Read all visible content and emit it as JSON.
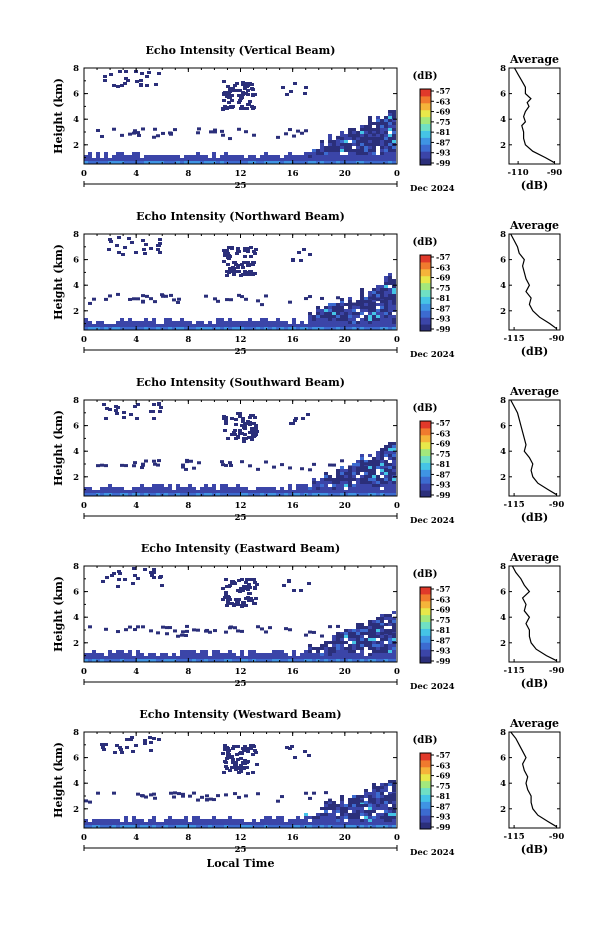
{
  "chart_data": [
    {
      "type": "heatmap",
      "title": "Echo Intensity (Vertical Beam)",
      "ylabel": "Height (km)",
      "xticks": [
        "0",
        "4",
        "8",
        "12",
        "16",
        "20",
        "0"
      ],
      "date_label": "25",
      "month_year": "Dec 2024",
      "ylim": [
        0.5,
        8
      ],
      "yticks": [
        "2",
        "4",
        "6",
        "8"
      ],
      "colorbar": {
        "unit": "(dB)",
        "ticks": [
          "-57",
          "-63",
          "-69",
          "-75",
          "-81",
          "-87",
          "-93",
          "-99"
        ]
      },
      "average": {
        "title": "Average",
        "xlabel": "(dB)",
        "xticks": [
          "-110",
          "-90"
        ],
        "xlim": [
          -115,
          -87
        ],
        "height": [
          0.6,
          1.0,
          1.5,
          2.0,
          2.5,
          3.0,
          3.5,
          3.8,
          4.2,
          4.6,
          5.0,
          5.3,
          5.6,
          6.0,
          6.5,
          7.0,
          7.5,
          8.0
        ],
        "db": [
          -90,
          -95,
          -102,
          -106,
          -107,
          -107,
          -108,
          -106,
          -107,
          -106,
          -104,
          -105,
          -103,
          -106,
          -106,
          -108,
          -110,
          -112
        ]
      }
    },
    {
      "type": "heatmap",
      "title": "Echo Intensity (Northward Beam)",
      "ylabel": "Height (km)",
      "xticks": [
        "0",
        "4",
        "8",
        "12",
        "16",
        "20",
        "0"
      ],
      "date_label": "25",
      "month_year": "Dec 2024",
      "ylim": [
        0.5,
        8
      ],
      "yticks": [
        "2",
        "4",
        "6",
        "8"
      ],
      "colorbar": {
        "unit": "(dB)",
        "ticks": [
          "-57",
          "-63",
          "-69",
          "-75",
          "-81",
          "-87",
          "-93",
          "-99"
        ]
      },
      "average": {
        "title": "Average",
        "xlabel": "(dB)",
        "xticks": [
          "-115",
          "-90"
        ],
        "xlim": [
          -118,
          -88
        ],
        "height": [
          0.6,
          1.0,
          1.5,
          2.0,
          2.5,
          3.0,
          3.5,
          4.0,
          4.5,
          5.0,
          5.5,
          6.0,
          6.5,
          7.0,
          7.5,
          8.0
        ],
        "db": [
          -90,
          -94,
          -100,
          -104,
          -106,
          -105,
          -108,
          -106,
          -108,
          -109,
          -110,
          -109,
          -112,
          -113,
          -115,
          -117
        ]
      }
    },
    {
      "type": "heatmap",
      "title": "Echo Intensity (Southward Beam)",
      "ylabel": "Height (km)",
      "xticks": [
        "0",
        "4",
        "8",
        "12",
        "16",
        "20",
        "0"
      ],
      "date_label": "25",
      "month_year": "Dec 2024",
      "ylim": [
        0.5,
        8
      ],
      "yticks": [
        "2",
        "4",
        "6",
        "8"
      ],
      "colorbar": {
        "unit": "(dB)",
        "ticks": [
          "-57",
          "-63",
          "-69",
          "-75",
          "-81",
          "-87",
          "-93",
          "-99"
        ]
      },
      "average": {
        "title": "Average",
        "xlabel": "(dB)",
        "xticks": [
          "-115",
          "-90"
        ],
        "xlim": [
          -118,
          -88
        ],
        "height": [
          0.6,
          1.0,
          1.5,
          2.0,
          2.5,
          3.0,
          3.5,
          4.0,
          4.5,
          5.0,
          5.5,
          6.0,
          6.5,
          7.0,
          7.5,
          8.0
        ],
        "db": [
          -90,
          -95,
          -101,
          -104,
          -105,
          -104,
          -106,
          -109,
          -108,
          -109,
          -110,
          -111,
          -112,
          -113,
          -115,
          -117
        ]
      }
    },
    {
      "type": "heatmap",
      "title": "Echo Intensity (Eastward Beam)",
      "ylabel": "Height (km)",
      "xticks": [
        "0",
        "4",
        "8",
        "12",
        "16",
        "20",
        "0"
      ],
      "date_label": "25",
      "month_year": "Dec 2024",
      "ylim": [
        0.5,
        8
      ],
      "yticks": [
        "2",
        "4",
        "6",
        "8"
      ],
      "colorbar": {
        "unit": "(dB)",
        "ticks": [
          "-57",
          "-63",
          "-69",
          "-75",
          "-81",
          "-87",
          "-93",
          "-99"
        ]
      },
      "average": {
        "title": "Average",
        "xlabel": "(dB)",
        "xticks": [
          "-115",
          "-90"
        ],
        "xlim": [
          -118,
          -88
        ],
        "height": [
          0.6,
          1.0,
          1.5,
          2.0,
          2.5,
          3.0,
          3.5,
          4.0,
          4.5,
          5.0,
          5.5,
          6.0,
          6.5,
          7.0,
          7.5,
          8.0
        ],
        "db": [
          -90,
          -96,
          -102,
          -105,
          -106,
          -106,
          -108,
          -106,
          -109,
          -108,
          -110,
          -106,
          -109,
          -111,
          -114,
          -116
        ]
      }
    },
    {
      "type": "heatmap",
      "title": "Echo Intensity (Westward Beam)",
      "ylabel": "Height (km)",
      "xticks": [
        "0",
        "4",
        "8",
        "12",
        "16",
        "20",
        "0"
      ],
      "date_label": "25",
      "month_year": "Dec 2024",
      "xlabel": "Local Time",
      "ylim": [
        0.5,
        8
      ],
      "yticks": [
        "2",
        "4",
        "6",
        "8"
      ],
      "colorbar": {
        "unit": "(dB)",
        "ticks": [
          "-57",
          "-63",
          "-69",
          "-75",
          "-81",
          "-87",
          "-93",
          "-99"
        ]
      },
      "average": {
        "title": "Average",
        "xlabel": "(dB)",
        "xticks": [
          "-115",
          "-90"
        ],
        "xlim": [
          -118,
          -88
        ],
        "height": [
          0.6,
          1.0,
          1.5,
          2.0,
          2.5,
          3.0,
          3.5,
          4.0,
          4.5,
          5.0,
          5.5,
          6.0,
          6.5,
          7.0,
          7.5,
          8.0
        ],
        "db": [
          -90,
          -95,
          -101,
          -104,
          -105,
          -105,
          -107,
          -108,
          -107,
          -109,
          -110,
          -108,
          -110,
          -112,
          -114,
          -117
        ]
      }
    }
  ],
  "colors": {
    "scale": [
      "#2b2f7a",
      "#3b45a8",
      "#3c6bd0",
      "#3f94e3",
      "#45c4e6",
      "#6fe0c4",
      "#a3e87c",
      "#e8e84a",
      "#f5b43a",
      "#f07a2e",
      "#e0392a"
    ]
  }
}
